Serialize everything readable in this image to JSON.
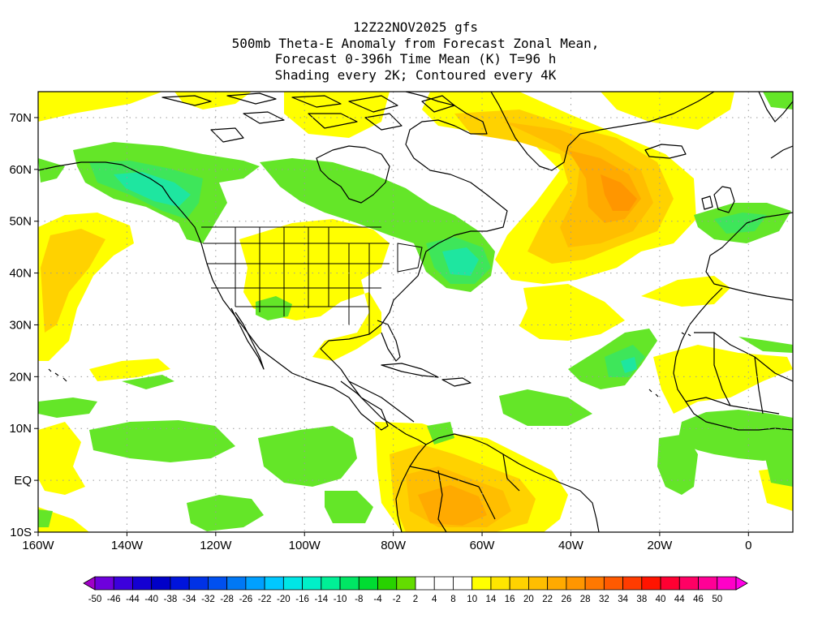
{
  "title": {
    "line1": "12Z22NOV2025 gfs",
    "line2": "500mb Theta-E Anomaly from Forecast Zonal Mean,",
    "line3": "Forecast 0-396h Time Mean (K) T=96 h",
    "line4": "Shading every 2K; Contoured every 4K"
  },
  "map": {
    "lon_range": [
      -160,
      10
    ],
    "lat_range": [
      -10,
      75
    ],
    "lat_labels": [
      "70N",
      "60N",
      "50N",
      "40N",
      "30N",
      "20N",
      "10N",
      "EQ",
      "10S"
    ],
    "lat_values": [
      70,
      60,
      50,
      40,
      30,
      20,
      10,
      0,
      -10
    ],
    "lon_labels": [
      "160W",
      "140W",
      "120W",
      "100W",
      "80W",
      "60W",
      "40W",
      "20W",
      "0"
    ],
    "lon_values": [
      -160,
      -140,
      -120,
      -100,
      -80,
      -60,
      -40,
      -20,
      0
    ],
    "grid": "dotted",
    "anomaly_regions": [
      {
        "name": "greenland-atlantic-warm",
        "level": "orange",
        "lon": [
          -30,
          -26
        ],
        "lat": [
          50,
          60
        ]
      },
      {
        "name": "south-america-warm",
        "level": "orange",
        "lon": [
          -75,
          -60
        ],
        "lat": [
          -10,
          0
        ]
      },
      {
        "name": "alaska-cool",
        "level": "green",
        "lon": [
          -145,
          -125
        ],
        "lat": [
          50,
          62
        ]
      },
      {
        "name": "northeast-us-cool",
        "level": "green",
        "lon": [
          -68,
          -55
        ],
        "lat": [
          38,
          45
        ]
      },
      {
        "name": "central-atlantic-cool",
        "level": "green",
        "lon": [
          -35,
          -25
        ],
        "lat": [
          20,
          27
        ]
      }
    ]
  },
  "colorbar": {
    "labels": [
      "-50",
      "-46",
      "-44",
      "-40",
      "-38",
      "-34",
      "-32",
      "-28",
      "-26",
      "-22",
      "-20",
      "-16",
      "-14",
      "-10",
      "-8",
      "-4",
      "-2",
      "2",
      "4",
      "8",
      "10",
      "14",
      "16",
      "20",
      "22",
      "26",
      "28",
      "32",
      "34",
      "38",
      "40",
      "44",
      "46",
      "50"
    ],
    "colors": [
      "#a000c8",
      "#6e00dc",
      "#3c00dc",
      "#1400d2",
      "#0000c8",
      "#0014dc",
      "#0032e6",
      "#0050f0",
      "#0078f5",
      "#00a0ff",
      "#00c8ff",
      "#00e6e6",
      "#00f0c8",
      "#00f096",
      "#00e664",
      "#00dc32",
      "#28d200",
      "#64dc00",
      "#ffffff",
      "#ffffff",
      "#ffffff",
      "#ffff00",
      "#ffe600",
      "#ffd200",
      "#ffbe00",
      "#ffaa00",
      "#ff9600",
      "#ff7800",
      "#ff5a00",
      "#ff3c00",
      "#ff1400",
      "#ff0032",
      "#ff0064",
      "#ff0096",
      "#ff00c8",
      "#ff00e6"
    ]
  },
  "palette": {
    "yellow": "#ffff00",
    "gold": "#ffd200",
    "light-orange": "#ffbe00",
    "orange": "#ffaa00",
    "deep-orange": "#ff9600",
    "green": "#64e628",
    "green2": "#3ee65a",
    "teal": "#1ee6a0",
    "coast": "#000000",
    "grid": "#9a9a9a"
  }
}
